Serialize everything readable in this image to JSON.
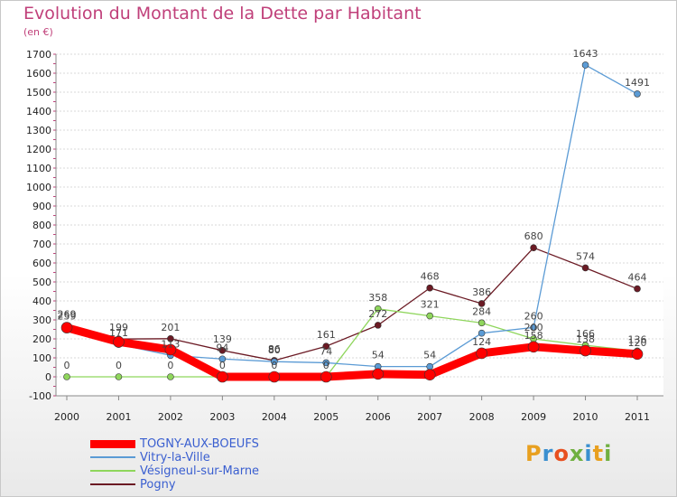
{
  "title": "Evolution du Montant de la Dette par Habitant",
  "unit": "(en €)",
  "logo": {
    "text": "Proxiti",
    "letters": [
      "P",
      "r",
      "o",
      "x",
      "i",
      "t",
      "i"
    ],
    "colors": [
      "#e8a020",
      "#3a8fd0",
      "#e85020",
      "#70b040",
      "#3a8fd0",
      "#e8a020",
      "#70b040"
    ]
  },
  "chart_data": {
    "type": "line",
    "x": [
      "2000",
      "2001",
      "2002",
      "2003",
      "2004",
      "2005",
      "2006",
      "2007",
      "2008",
      "2009",
      "2010",
      "2011"
    ],
    "ylim": [
      -100,
      1700
    ],
    "yticks": [
      -100,
      0,
      100,
      200,
      300,
      400,
      500,
      600,
      700,
      800,
      900,
      1000,
      1100,
      1200,
      1300,
      1400,
      1500,
      1600,
      1700
    ],
    "grid": "horizontal",
    "legend_position": "bottom-left",
    "series": [
      {
        "name": "TOGNY-AUX-BOEUFS",
        "color": "#ff0000",
        "values": [
          259,
          184,
          143,
          0,
          0,
          0,
          15,
          11,
          124,
          158,
          138,
          120
        ],
        "labels": [
          "259",
          "",
          "",
          "0",
          "0",
          "0",
          "",
          "",
          "124",
          "158",
          "138",
          "120"
        ]
      },
      {
        "name": "Vitry-la-Ville",
        "color": "#5b9bd5",
        "values": [
          269,
          171,
          113,
          94,
          80,
          74,
          54,
          54,
          230,
          260,
          1643,
          1491
        ],
        "labels": [
          "269",
          "171",
          "113",
          "94",
          "80",
          "74",
          "54",
          "54",
          "",
          "260",
          "1643",
          "1491"
        ]
      },
      {
        "name": "Vésigneul-sur-Marne",
        "color": "#8fd65c",
        "values": [
          0,
          0,
          0,
          0,
          0,
          0,
          358,
          321,
          284,
          200,
          166,
          136
        ],
        "labels": [
          "0",
          "0",
          "0",
          "",
          "",
          "",
          "358",
          "321",
          "284",
          "200",
          "166",
          "136"
        ]
      },
      {
        "name": "Pogny",
        "color": "#6b1a24",
        "values": [
          259,
          199,
          201,
          139,
          86,
          161,
          272,
          468,
          386,
          680,
          574,
          464
        ],
        "labels": [
          "",
          "199",
          "201",
          "139",
          "86",
          "161",
          "272",
          "468",
          "386",
          "680",
          "574",
          "464"
        ]
      }
    ]
  }
}
